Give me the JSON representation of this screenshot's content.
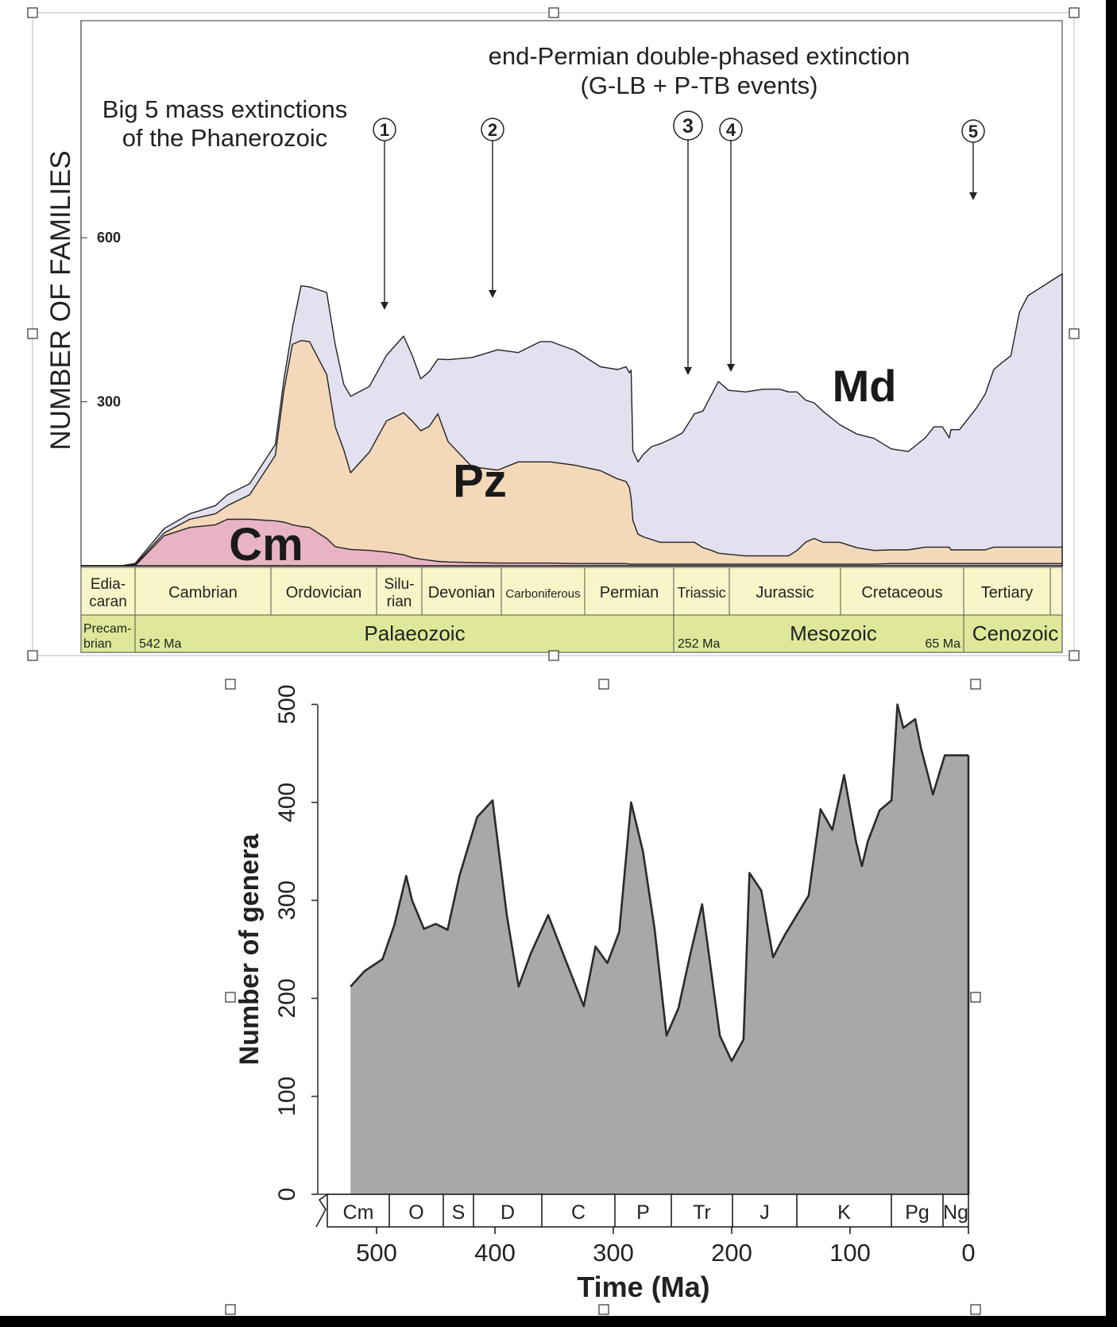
{
  "colors": {
    "md_fill": "#e3e1f0",
    "pz_fill": "#f3d9b9",
    "cm_fill": "#e8b4c4",
    "period_band": "#f8f6c8",
    "era_band": "#dfe89a",
    "genera_fill": "#a7a8aa",
    "handle_border": "#333333",
    "frame": "#000000"
  },
  "chart_data": [
    {
      "type": "area",
      "stacked": true,
      "title": "Big 5 mass extinctions of the Phanerozoic",
      "subtitle": "end-Permian double-phased extinction (G-LB + P-TB events)",
      "ylabel": "NUMBER OF FAMILIES",
      "xlabel": "",
      "xlim": [
        600,
        0
      ],
      "ylim": [
        0,
        940
      ],
      "yticks": [
        "600",
        "300"
      ],
      "ytick_values": [
        600,
        300
      ],
      "x": [
        600,
        550,
        542,
        525,
        510,
        495,
        488,
        475,
        460,
        455,
        450,
        445,
        440,
        430,
        425,
        420,
        416,
        405,
        395,
        385,
        380,
        375,
        370,
        365,
        359,
        345,
        330,
        318,
        305,
        299,
        285,
        270,
        260,
        255,
        253,
        252,
        251,
        248,
        245,
        240,
        235,
        228,
        222,
        215,
        210,
        205,
        201,
        195,
        185,
        175,
        165,
        160,
        155,
        150,
        145,
        140,
        130,
        120,
        110,
        100,
        90,
        80,
        75,
        70,
        66,
        65,
        60,
        55,
        50,
        45,
        40,
        35,
        30,
        25,
        20,
        15,
        10,
        5,
        0
      ],
      "series": [
        {
          "name": "Cm",
          "values": [
            0,
            0,
            0,
            55,
            70,
            75,
            85,
            85,
            82,
            80,
            75,
            72,
            70,
            50,
            35,
            32,
            30,
            28,
            25,
            20,
            15,
            12,
            10,
            8,
            7,
            6,
            5,
            5,
            5,
            5,
            4,
            4,
            4,
            4,
            3,
            3,
            3,
            3,
            3,
            3,
            3,
            3,
            3,
            3,
            3,
            3,
            3,
            3,
            3,
            3,
            3,
            3,
            3,
            3,
            3,
            3,
            3,
            3,
            3,
            4,
            4,
            4,
            4,
            4,
            4,
            4,
            4,
            4,
            4,
            4,
            4,
            4,
            4,
            4,
            4,
            4,
            4,
            4,
            4
          ]
        },
        {
          "name": "Pz",
          "values": [
            0,
            0,
            2,
            5,
            15,
            20,
            25,
            45,
            120,
            240,
            330,
            340,
            340,
            300,
            220,
            180,
            140,
            180,
            240,
            260,
            250,
            235,
            245,
            270,
            220,
            175,
            170,
            185,
            185,
            185,
            180,
            170,
            155,
            150,
            140,
            120,
            80,
            55,
            50,
            45,
            40,
            40,
            40,
            40,
            30,
            25,
            20,
            18,
            15,
            15,
            15,
            15,
            25,
            40,
            47,
            40,
            40,
            30,
            25,
            25,
            25,
            30,
            30,
            30,
            30,
            25,
            25,
            25,
            25,
            25,
            30,
            30,
            30,
            30,
            30,
            30,
            30,
            30,
            30
          ]
        },
        {
          "name": "Md",
          "values": [
            0,
            0,
            2,
            8,
            10,
            15,
            20,
            20,
            20,
            20,
            30,
            100,
            100,
            150,
            150,
            120,
            140,
            120,
            120,
            140,
            120,
            95,
            100,
            100,
            150,
            200,
            220,
            200,
            220,
            220,
            210,
            190,
            200,
            210,
            210,
            235,
            127,
            132,
            150,
            170,
            180,
            190,
            200,
            235,
            250,
            285,
            314,
            300,
            300,
            305,
            305,
            300,
            290,
            260,
            248,
            240,
            215,
            208,
            205,
            185,
            180,
            200,
            220,
            220,
            200,
            220,
            220,
            240,
            260,
            285,
            325,
            338,
            350,
            430,
            460,
            470,
            480,
            490,
            500
          ]
        }
      ],
      "area_labels": [
        "Md",
        "Pz",
        "Cm"
      ],
      "annotations": [
        {
          "label": "1",
          "x": 445
        },
        {
          "label": "2",
          "x": 372
        },
        {
          "label": "3",
          "x": 260
        },
        {
          "label": "4",
          "x": 201
        },
        {
          "label": "5",
          "x": 66
        }
      ],
      "periods": [
        "Edia-caran",
        "Cambrian",
        "Ordovician",
        "Silu-rian",
        "Devonian",
        "Carboniferous",
        "Permian",
        "Triassic",
        "Jurassic",
        "Cretaceous",
        "Tertiary"
      ],
      "eras": [
        "Precam-brian",
        "Palaeozoic",
        "Mesozoic",
        "Cenozoic"
      ],
      "era_boundary_labels": [
        "542 Ma",
        "252 Ma",
        "65 Ma"
      ],
      "grid": false
    },
    {
      "type": "area",
      "title": "",
      "xlabel": "Time (Ma)",
      "ylabel": "Number of genera",
      "xlim": [
        550,
        0
      ],
      "ylim": [
        0,
        500
      ],
      "xticks": [
        500,
        400,
        300,
        200,
        100,
        0
      ],
      "yticks": [
        0,
        100,
        200,
        300,
        400,
        500
      ],
      "x": [
        522,
        510,
        495,
        485,
        475,
        470,
        460,
        450,
        440,
        430,
        415,
        402,
        390,
        380,
        370,
        355,
        340,
        325,
        315,
        305,
        295,
        285,
        275,
        265,
        255,
        245,
        235,
        225,
        210,
        200,
        190,
        185,
        175,
        165,
        155,
        145,
        135,
        125,
        115,
        105,
        95,
        90,
        85,
        75,
        65,
        60,
        55,
        45,
        40,
        35,
        30,
        20,
        10,
        0
      ],
      "values": [
        212,
        228,
        240,
        275,
        325,
        300,
        271,
        276,
        270,
        325,
        385,
        402,
        285,
        212,
        245,
        285,
        238,
        192,
        253,
        236,
        268,
        400,
        350,
        270,
        162,
        190,
        245,
        296,
        162,
        136,
        158,
        328,
        310,
        242,
        265,
        285,
        305,
        393,
        372,
        428,
        360,
        335,
        360,
        392,
        402,
        500,
        476,
        485,
        455,
        432,
        408,
        448,
        448,
        448
      ],
      "periods": [
        "Cm",
        "O",
        "S",
        "D",
        "C",
        "P",
        "Tr",
        "J",
        "K",
        "Pg",
        "Ng"
      ],
      "grid": false
    }
  ]
}
